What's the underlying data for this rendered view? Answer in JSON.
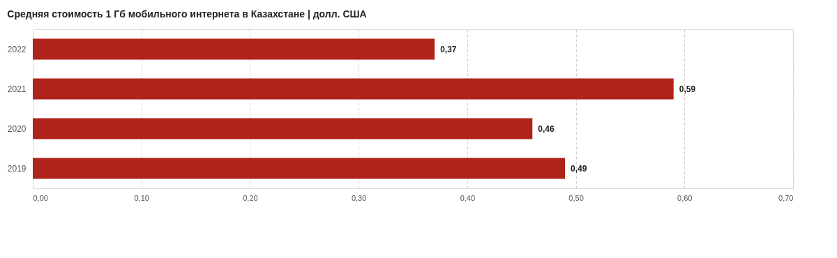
{
  "chart_data": {
    "type": "bar",
    "orientation": "horizontal",
    "title": "Средняя стоимость 1 Гб мобильного интернета в Казахстане | долл. США",
    "categories": [
      "2022",
      "2021",
      "2020",
      "2019"
    ],
    "values": [
      0.37,
      0.59,
      0.46,
      0.49
    ],
    "value_labels": [
      "0,37",
      "0,59",
      "0,46",
      "0,49"
    ],
    "color": "#b0231a",
    "xlim": [
      0,
      0.7
    ],
    "xticks": [
      {
        "value": 0,
        "label": "0,00"
      },
      {
        "value": 0.1,
        "label": "0,10"
      },
      {
        "value": 0.2,
        "label": "0,20"
      },
      {
        "value": 0.3,
        "label": "0,30"
      },
      {
        "value": 0.4,
        "label": "0,40"
      },
      {
        "value": 0.5,
        "label": "0,50"
      },
      {
        "value": 0.6,
        "label": "0,60"
      },
      {
        "value": 0.7,
        "label": "0,70"
      }
    ],
    "grid": "x"
  }
}
